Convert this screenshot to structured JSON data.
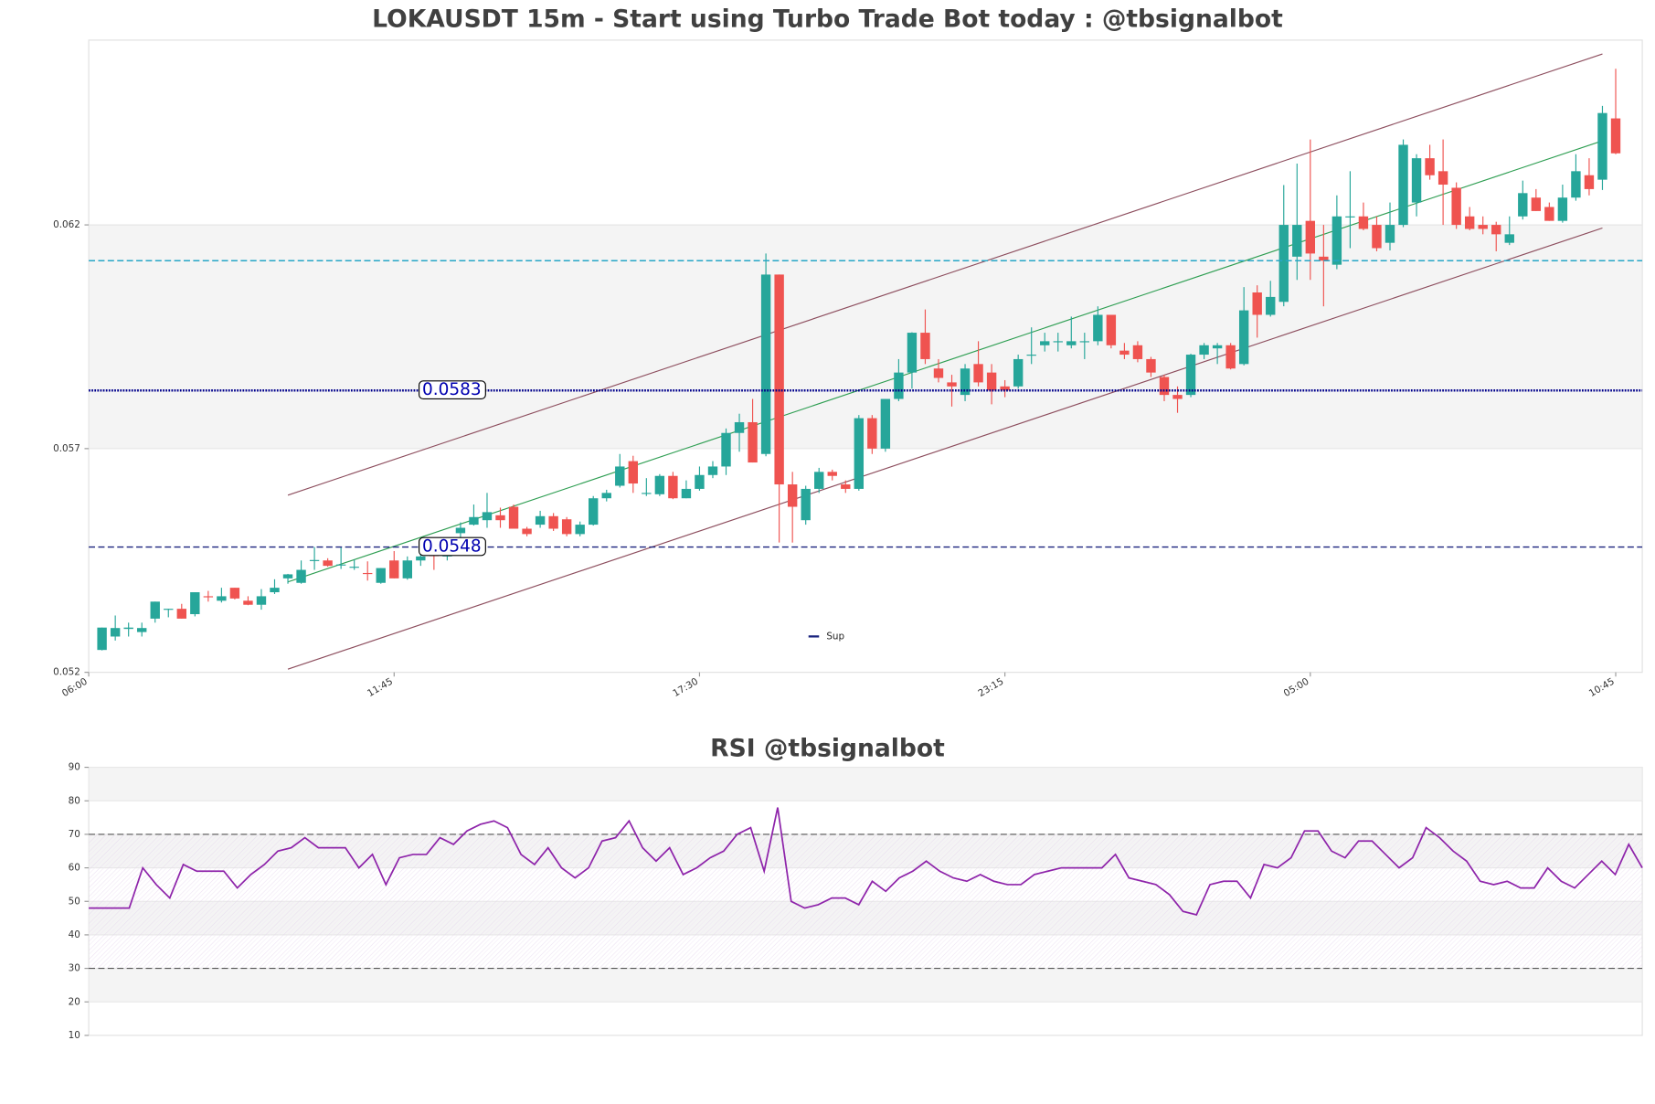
{
  "chart_data": [
    {
      "type": "candlestick",
      "title": "LOKAUSDT 15m - Start using Turbo Trade Bot today : @tbsignalbot",
      "up_color": "#26a69a",
      "down_color": "#ef5350",
      "xlim": [
        0,
        117
      ],
      "xticks": [
        {
          "value": 0,
          "label": "06:00"
        },
        {
          "value": 23,
          "label": "11:45"
        },
        {
          "value": 46,
          "label": "17:30"
        },
        {
          "value": 69,
          "label": "23:15"
        },
        {
          "value": 92,
          "label": "05:00"
        },
        {
          "value": 115,
          "label": "10:45"
        }
      ],
      "ylim": [
        0.052,
        0.06613
      ],
      "yticks": [
        0.052,
        0.057,
        0.062
      ],
      "band": [
        0.057,
        0.062
      ],
      "levels": [
        {
          "value": 0.0583,
          "label": "0.0583",
          "color": "#00008b",
          "style": "dotted"
        },
        {
          "value": 0.0548,
          "label": "0.0548",
          "color": "#1a237e",
          "style": "dashed",
          "name": "Sup"
        },
        {
          "value": 0.0612,
          "color": "#26a6c6",
          "style": "dashed"
        }
      ],
      "legend": "lower center",
      "channel": {
        "x": [
          15,
          114
        ],
        "upper": [
          0.05596,
          0.06582
        ],
        "middle": [
          0.05402,
          0.06388
        ],
        "lower": [
          0.05207,
          0.06193
        ],
        "edge_color": "#8d4e5e",
        "mid_color": "#2e9e52"
      },
      "candles": [
        [
          0.0525,
          0.053,
          0.05249,
          0.053
        ],
        [
          0.0528,
          0.05327,
          0.05271,
          0.05299
        ],
        [
          0.05297,
          0.05311,
          0.0528,
          0.053
        ],
        [
          0.0529,
          0.05311,
          0.0528,
          0.05299
        ],
        [
          0.0532,
          0.05358,
          0.05311,
          0.05358
        ],
        [
          0.05342,
          0.05342,
          0.05323,
          0.05342
        ],
        [
          0.05342,
          0.05353,
          0.0532,
          0.0532
        ],
        [
          0.0533,
          0.05379,
          0.05325,
          0.05379
        ],
        [
          0.0537,
          0.05382,
          0.05358,
          0.05368
        ],
        [
          0.0536,
          0.05389,
          0.05356,
          0.0537
        ],
        [
          0.05389,
          0.05389,
          0.05363,
          0.05365
        ],
        [
          0.0536,
          0.0537,
          0.0535,
          0.05351
        ],
        [
          0.05351,
          0.05386,
          0.0534,
          0.0537
        ],
        [
          0.05379,
          0.05408,
          0.05375,
          0.05389
        ],
        [
          0.0541,
          0.0542,
          0.05398,
          0.05419
        ],
        [
          0.054,
          0.0545,
          0.05398,
          0.05429
        ],
        [
          0.0545,
          0.0548,
          0.05429,
          0.05451
        ],
        [
          0.0545,
          0.05455,
          0.05436,
          0.05438
        ],
        [
          0.0544,
          0.0548,
          0.05431,
          0.05441
        ],
        [
          0.05436,
          0.05452,
          0.05429,
          0.05436
        ],
        [
          0.05422,
          0.05448,
          0.05405,
          0.0542
        ],
        [
          0.054,
          0.05433,
          0.05398,
          0.05433
        ],
        [
          0.0545,
          0.05471,
          0.0541,
          0.0541
        ],
        [
          0.0541,
          0.05459,
          0.05407,
          0.0545
        ],
        [
          0.0545,
          0.05471,
          0.05438,
          0.05459
        ],
        [
          0.05462,
          0.05466,
          0.05429,
          0.05461
        ],
        [
          0.05459,
          0.0549,
          0.0545,
          0.05481
        ],
        [
          0.05511,
          0.05535,
          0.05499,
          0.05523
        ],
        [
          0.0553,
          0.05575,
          0.05528,
          0.05547
        ],
        [
          0.0554,
          0.05601,
          0.05523,
          0.05558
        ],
        [
          0.05551,
          0.05568,
          0.05523,
          0.0554
        ],
        [
          0.0557,
          0.05575,
          0.05521,
          0.05521
        ],
        [
          0.05521,
          0.05525,
          0.05504,
          0.05509
        ],
        [
          0.0553,
          0.05561,
          0.05523,
          0.05549
        ],
        [
          0.05549,
          0.05556,
          0.05516,
          0.05521
        ],
        [
          0.05542,
          0.05547,
          0.05504,
          0.05509
        ],
        [
          0.05509,
          0.05537,
          0.05504,
          0.0553
        ],
        [
          0.0553,
          0.05594,
          0.05528,
          0.05589
        ],
        [
          0.05589,
          0.05608,
          0.05582,
          0.05601
        ],
        [
          0.05617,
          0.05688,
          0.05613,
          0.0566
        ],
        [
          0.05672,
          0.05684,
          0.05601,
          0.05622
        ],
        [
          0.05601,
          0.05634,
          0.05594,
          0.05601
        ],
        [
          0.05598,
          0.05643,
          0.05594,
          0.05639
        ],
        [
          0.05639,
          0.05648,
          0.05587,
          0.05589
        ],
        [
          0.05589,
          0.05629,
          0.05589,
          0.0561
        ],
        [
          0.0561,
          0.0566,
          0.05606,
          0.05641
        ],
        [
          0.05641,
          0.05672,
          0.05634,
          0.0566
        ],
        [
          0.0566,
          0.05745,
          0.05641,
          0.05735
        ],
        [
          0.05735,
          0.05778,
          0.05693,
          0.05759
        ],
        [
          0.05759,
          0.05811,
          0.05669,
          0.05669
        ],
        [
          0.05688,
          0.06136,
          0.05683,
          0.06089
        ],
        [
          0.06089,
          0.06089,
          0.0549,
          0.0562
        ],
        [
          0.0562,
          0.05648,
          0.0549,
          0.0557
        ],
        [
          0.0554,
          0.05617,
          0.0553,
          0.0561
        ],
        [
          0.0561,
          0.05657,
          0.05601,
          0.05648
        ],
        [
          0.05648,
          0.05653,
          0.05629,
          0.05639
        ],
        [
          0.0562,
          0.05629,
          0.05601,
          0.0561
        ],
        [
          0.0561,
          0.05775,
          0.05606,
          0.05768
        ],
        [
          0.05768,
          0.05775,
          0.05688,
          0.057
        ],
        [
          0.057,
          0.05811,
          0.05693,
          0.05811
        ],
        [
          0.05811,
          0.059,
          0.05806,
          0.0587
        ],
        [
          0.0587,
          0.0596,
          0.05834,
          0.05959
        ],
        [
          0.05959,
          0.06011,
          0.05889,
          0.059
        ],
        [
          0.05879,
          0.059,
          0.05848,
          0.05858
        ],
        [
          0.05848,
          0.05865,
          0.05794,
          0.05839
        ],
        [
          0.0582,
          0.05889,
          0.05806,
          0.05879
        ],
        [
          0.05889,
          0.0594,
          0.05839,
          0.05848
        ],
        [
          0.0587,
          0.05889,
          0.05799,
          0.0583
        ],
        [
          0.05839,
          0.05853,
          0.05815,
          0.0583
        ],
        [
          0.05839,
          0.0591,
          0.05834,
          0.059
        ],
        [
          0.0591,
          0.05971,
          0.05889,
          0.0591
        ],
        [
          0.05931,
          0.05959,
          0.05917,
          0.0594
        ],
        [
          0.0594,
          0.05959,
          0.05917,
          0.0594
        ],
        [
          0.05931,
          0.05995,
          0.05924,
          0.0594
        ],
        [
          0.0594,
          0.05959,
          0.059,
          0.0594
        ],
        [
          0.0594,
          0.06018,
          0.05931,
          0.05999
        ],
        [
          0.05999,
          0.05999,
          0.05924,
          0.05931
        ],
        [
          0.05919,
          0.05936,
          0.059,
          0.0591
        ],
        [
          0.05931,
          0.0594,
          0.05893,
          0.059
        ],
        [
          0.059,
          0.05905,
          0.0586,
          0.0587
        ],
        [
          0.0586,
          0.05865,
          0.05806,
          0.0582
        ],
        [
          0.0582,
          0.05839,
          0.0578,
          0.05811
        ],
        [
          0.0582,
          0.05912,
          0.05815,
          0.0591
        ],
        [
          0.0591,
          0.05936,
          0.059,
          0.05931
        ],
        [
          0.05924,
          0.05936,
          0.05889,
          0.05931
        ],
        [
          0.05931,
          0.05936,
          0.05877,
          0.05879
        ],
        [
          0.05889,
          0.06061,
          0.05886,
          0.06009
        ],
        [
          0.06049,
          0.06065,
          0.05948,
          0.05999
        ],
        [
          0.05999,
          0.06075,
          0.05995,
          0.06039
        ],
        [
          0.06028,
          0.06289,
          0.06018,
          0.062
        ],
        [
          0.06129,
          0.06337,
          0.06077,
          0.062
        ],
        [
          0.06209,
          0.06391,
          0.06077,
          0.06136
        ],
        [
          0.06129,
          0.062,
          0.06018,
          0.0612
        ],
        [
          0.06111,
          0.06266,
          0.06101,
          0.06219
        ],
        [
          0.06219,
          0.0632,
          0.06148,
          0.06219
        ],
        [
          0.06219,
          0.0625,
          0.06188,
          0.06191
        ],
        [
          0.062,
          0.06219,
          0.06141,
          0.06148
        ],
        [
          0.0616,
          0.0625,
          0.06143,
          0.062
        ],
        [
          0.062,
          0.06391,
          0.06195,
          0.06379
        ],
        [
          0.0625,
          0.06358,
          0.06219,
          0.06349
        ],
        [
          0.06349,
          0.06379,
          0.06301,
          0.06311
        ],
        [
          0.0632,
          0.06391,
          0.062,
          0.0629
        ],
        [
          0.06283,
          0.06295,
          0.06191,
          0.062
        ],
        [
          0.06219,
          0.0624,
          0.06188,
          0.06191
        ],
        [
          0.062,
          0.06219,
          0.06179,
          0.06191
        ],
        [
          0.062,
          0.06207,
          0.06141,
          0.06179
        ],
        [
          0.0616,
          0.06219,
          0.06155,
          0.06179
        ],
        [
          0.06219,
          0.06299,
          0.06212,
          0.06271
        ],
        [
          0.06261,
          0.0628,
          0.06231,
          0.06231
        ],
        [
          0.0624,
          0.0625,
          0.06209,
          0.06209
        ],
        [
          0.06209,
          0.0629,
          0.06205,
          0.06261
        ],
        [
          0.06261,
          0.06358,
          0.06254,
          0.0632
        ],
        [
          0.06311,
          0.06349,
          0.06266,
          0.0628
        ],
        [
          0.06301,
          0.06466,
          0.06278,
          0.0645
        ],
        [
          0.06438,
          0.06549,
          0.06358,
          0.0636
        ]
      ]
    },
    {
      "type": "line",
      "title": "RSI @tbsignalbot",
      "color": "#8e24aa",
      "ylim": [
        10,
        90
      ],
      "yticks": [
        10,
        20,
        30,
        40,
        50,
        60,
        70,
        80,
        90
      ],
      "bands": [
        [
          80,
          90
        ],
        [
          60,
          70
        ],
        [
          40,
          50
        ],
        [
          20,
          30
        ]
      ],
      "hatch": [
        30,
        70
      ],
      "levels": [
        70,
        30
      ],
      "values": [
        48,
        48,
        48,
        48,
        60,
        55,
        51,
        61,
        59,
        59,
        59,
        54,
        58,
        61,
        65,
        66,
        69,
        66,
        66,
        66,
        60,
        64,
        55,
        63,
        64,
        64,
        69,
        67,
        71,
        73,
        74,
        72,
        64,
        61,
        66,
        60,
        57,
        60,
        68,
        69,
        74,
        66,
        62,
        66,
        58,
        60,
        63,
        65,
        70,
        72,
        59,
        78,
        50,
        48,
        49,
        51,
        51,
        49,
        56,
        53,
        57,
        59,
        62,
        59,
        57,
        56,
        58,
        56,
        55,
        55,
        58,
        59,
        60,
        60,
        60,
        60,
        64,
        57,
        56,
        55,
        52,
        47,
        46,
        55,
        56,
        56,
        51,
        61,
        60,
        63,
        71,
        71,
        65,
        63,
        68,
        68,
        64,
        60,
        63,
        72,
        69,
        65,
        62,
        56,
        55,
        56,
        54,
        54,
        60,
        56,
        54,
        58,
        62,
        58,
        67,
        60
      ]
    }
  ]
}
